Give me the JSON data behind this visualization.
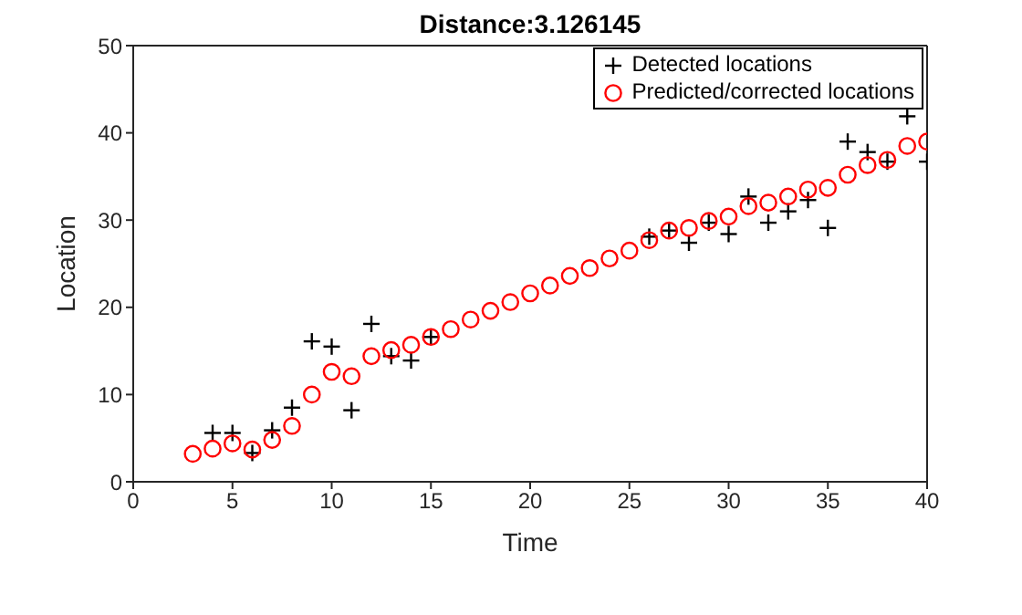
{
  "chart_data": {
    "type": "scatter",
    "title": "Distance:3.126145",
    "xlabel": "Time",
    "ylabel": "Location",
    "x": [
      3,
      4,
      5,
      6,
      7,
      8,
      9,
      10,
      11,
      12,
      13,
      14,
      15,
      16,
      17,
      18,
      19,
      20,
      21,
      22,
      23,
      24,
      25,
      26,
      27,
      28,
      29,
      30,
      31,
      32,
      33,
      34,
      35,
      36,
      37,
      38,
      39,
      40
    ],
    "series": [
      {
        "name": "Detected locations",
        "color": "#000000",
        "marker": "cross",
        "values": [
          null,
          5.6,
          5.6,
          3.3,
          5.9,
          8.5,
          16.1,
          15.5,
          8.2,
          18.1,
          14.4,
          13.9,
          16.6,
          null,
          null,
          null,
          null,
          null,
          null,
          null,
          null,
          null,
          null,
          28.1,
          28.8,
          27.4,
          29.7,
          28.4,
          32.7,
          29.7,
          31.0,
          32.3,
          29.1,
          39.0,
          37.8,
          36.7,
          41.9,
          36.7
        ]
      },
      {
        "name": "Predicted/corrected locations",
        "color": "#ff0000",
        "marker": "circle",
        "values": [
          3.2,
          3.8,
          4.4,
          3.7,
          4.8,
          6.4,
          10.0,
          12.6,
          12.1,
          14.4,
          15.1,
          15.7,
          16.6,
          17.5,
          18.6,
          19.6,
          20.6,
          21.6,
          22.5,
          23.6,
          24.5,
          25.6,
          26.5,
          27.7,
          28.8,
          29.1,
          29.9,
          30.4,
          31.6,
          32.0,
          32.7,
          33.5,
          33.7,
          35.2,
          36.3,
          36.9,
          38.5,
          39.0
        ]
      }
    ],
    "xlim": [
      0,
      40
    ],
    "xticks": [
      0,
      5,
      10,
      15,
      20,
      25,
      30,
      35,
      40
    ],
    "ylim": [
      0,
      50
    ],
    "yticks": [
      0,
      10,
      20,
      30,
      40,
      50
    ],
    "legend": "top right"
  }
}
